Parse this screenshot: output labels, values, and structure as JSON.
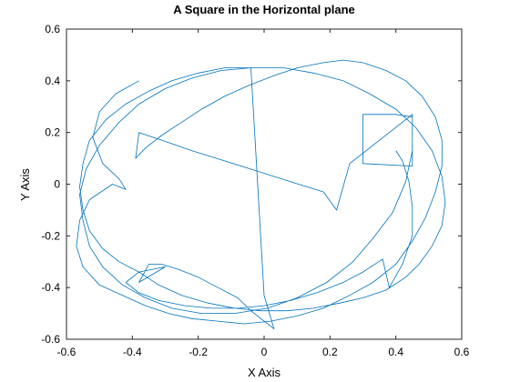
{
  "chart_data": {
    "type": "line",
    "title": "A Square in the Horizontal plane",
    "xlabel": "X Axis",
    "ylabel": "Y Axis",
    "xlim": [
      -0.6,
      0.6
    ],
    "ylim": [
      -0.6,
      0.6
    ],
    "xticks": [
      "-0.6",
      "-0.4",
      "-0.2",
      "0",
      "0.2",
      "0.4",
      "0.6"
    ],
    "yticks": [
      "-0.6",
      "-0.4",
      "-0.2",
      "0",
      "0.2",
      "0.4",
      "0.6"
    ],
    "grid": false,
    "colors": {
      "line": "#0072BD",
      "axes": "#262626"
    },
    "series": [
      {
        "x": [
          -0.38,
          -0.45,
          -0.5,
          -0.52,
          -0.49,
          -0.44,
          -0.42,
          -0.46,
          -0.53,
          -0.56,
          -0.57,
          -0.55,
          -0.5,
          -0.43,
          -0.36,
          -0.29,
          -0.22,
          -0.14,
          -0.06,
          0.02,
          0.1,
          0.18,
          0.26,
          0.33,
          0.4,
          0.45,
          0.49,
          0.52,
          0.54,
          0.54,
          0.52,
          0.48,
          0.43,
          0.37,
          0.3,
          0.24,
          0.18,
          0.1,
          0.03,
          -0.05,
          -0.12,
          -0.19,
          -0.25,
          -0.31,
          -0.36,
          -0.39,
          -0.38,
          -0.31,
          -0.22,
          -0.12,
          -0.02,
          0.08,
          0.18,
          0.22,
          0.26,
          0.45,
          0.45,
          0.3,
          0.3,
          0.4,
          0.45,
          0.45,
          0.43,
          0.39,
          0.33,
          0.27,
          0.19,
          0.1,
          0.01,
          -0.09,
          -0.19,
          -0.28,
          -0.36,
          -0.43,
          -0.49,
          -0.53,
          -0.55,
          -0.56,
          -0.54,
          -0.5,
          -0.44,
          -0.38,
          -0.3,
          -0.22,
          -0.13,
          -0.04,
          0.0,
          0.03,
          -0.04,
          -0.08,
          -0.14,
          -0.2,
          -0.26,
          -0.31,
          -0.35,
          -0.38,
          -0.3,
          -0.38,
          -0.44,
          -0.49,
          -0.53,
          -0.55,
          -0.56,
          -0.55,
          -0.53,
          -0.48,
          -0.42,
          -0.35,
          -0.28,
          -0.2,
          -0.12,
          -0.03,
          0.06,
          0.15,
          0.24,
          0.32,
          0.4,
          0.46,
          0.51,
          0.54,
          0.55,
          0.54,
          0.51,
          0.47,
          0.43,
          0.37,
          0.3,
          0.23,
          0.15,
          0.07,
          -0.01,
          -0.09,
          -0.17,
          -0.25,
          -0.32,
          -0.38,
          -0.42,
          -0.38,
          -0.32,
          -0.24,
          -0.16,
          -0.08,
          0.0,
          0.08,
          0.16,
          0.24,
          0.3,
          0.36,
          0.38,
          0.42,
          0.45,
          0.45,
          0.44,
          0.42,
          0.4
        ],
        "y": [
          0.4,
          0.35,
          0.28,
          0.18,
          0.08,
          0.02,
          -0.02,
          0.0,
          -0.06,
          -0.14,
          -0.24,
          -0.32,
          -0.39,
          -0.43,
          -0.47,
          -0.5,
          -0.52,
          -0.53,
          -0.54,
          -0.53,
          -0.51,
          -0.48,
          -0.43,
          -0.38,
          -0.31,
          -0.22,
          -0.13,
          -0.03,
          0.07,
          0.17,
          0.26,
          0.34,
          0.4,
          0.44,
          0.47,
          0.48,
          0.47,
          0.45,
          0.42,
          0.38,
          0.34,
          0.29,
          0.24,
          0.19,
          0.14,
          0.1,
          0.2,
          0.17,
          0.13,
          0.09,
          0.05,
          0.01,
          -0.03,
          -0.1,
          0.08,
          0.27,
          0.07,
          0.08,
          0.27,
          0.27,
          0.26,
          0.13,
          0.01,
          -0.11,
          -0.21,
          -0.3,
          -0.38,
          -0.44,
          -0.48,
          -0.5,
          -0.5,
          -0.48,
          -0.44,
          -0.39,
          -0.32,
          -0.24,
          -0.14,
          -0.04,
          0.06,
          0.15,
          0.24,
          0.31,
          0.37,
          0.41,
          0.44,
          0.45,
          -0.43,
          -0.56,
          -0.49,
          -0.44,
          -0.4,
          -0.36,
          -0.33,
          -0.31,
          -0.31,
          -0.38,
          -0.32,
          -0.34,
          -0.3,
          -0.25,
          -0.18,
          -0.1,
          -0.01,
          0.08,
          0.17,
          0.25,
          0.31,
          0.36,
          0.4,
          0.43,
          0.45,
          0.45,
          0.45,
          0.43,
          0.4,
          0.35,
          0.29,
          0.22,
          0.13,
          0.03,
          -0.07,
          -0.16,
          -0.24,
          -0.31,
          -0.36,
          -0.41,
          -0.44,
          -0.46,
          -0.48,
          -0.49,
          -0.49,
          -0.48,
          -0.46,
          -0.43,
          -0.39,
          -0.34,
          -0.38,
          -0.42,
          -0.45,
          -0.47,
          -0.48,
          -0.48,
          -0.47,
          -0.45,
          -0.42,
          -0.38,
          -0.34,
          -0.29,
          -0.4,
          -0.31,
          -0.2,
          -0.09,
          0.01,
          0.09,
          0.13
        ]
      }
    ]
  }
}
